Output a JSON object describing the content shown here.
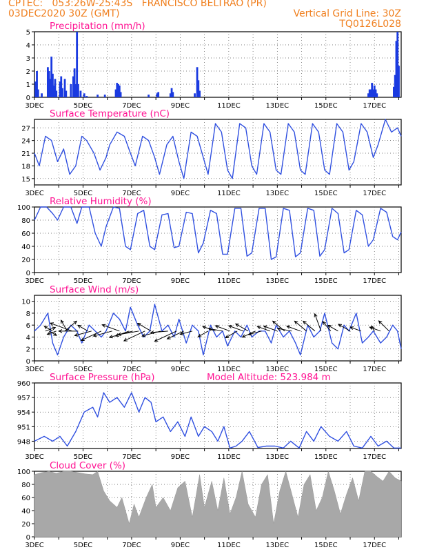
{
  "header": {
    "line1": "CPTEC:   053:26W-25:43S   FRANCISCO BELTRAO (PR)",
    "line2_left": "03DEC2020 30Z (GMT)",
    "line2_right": "Vertical Grid Line: 30Z",
    "line3_right": "TQ0126L028"
  },
  "colors": {
    "header": "#f08020",
    "title": "#ff1493",
    "line": "#3050e0",
    "bars": "#1a3ae0",
    "cloud": "#a8a8a8"
  },
  "x_axis": {
    "start_day": 3,
    "end_day": 18.1,
    "tick_labels": [
      "3DEC",
      "5DEC",
      "7DEC",
      "9DEC",
      "11DEC",
      "13DEC",
      "15DEC",
      "17DEC"
    ],
    "tick_days": [
      3,
      5,
      7,
      9,
      11,
      13,
      15,
      17
    ],
    "vertical_grid_line": "30Z"
  },
  "chart_data": [
    {
      "type": "bar",
      "title": "Precipitation (mm/h)",
      "ylim": [
        0,
        5
      ],
      "yticks": [
        "0",
        "1",
        "2",
        "3",
        "4",
        "5"
      ],
      "bars": [
        [
          3.05,
          1.2
        ],
        [
          3.1,
          2.0
        ],
        [
          3.15,
          0.6
        ],
        [
          3.3,
          0.3
        ],
        [
          3.55,
          2.3
        ],
        [
          3.6,
          2.0
        ],
        [
          3.65,
          1.4
        ],
        [
          3.7,
          3.1
        ],
        [
          3.75,
          1.8
        ],
        [
          3.8,
          0.9
        ],
        [
          3.85,
          1.4
        ],
        [
          3.9,
          0.5
        ],
        [
          4.05,
          1.2
        ],
        [
          4.1,
          1.6
        ],
        [
          4.15,
          0.7
        ],
        [
          4.25,
          1.4
        ],
        [
          4.3,
          0.5
        ],
        [
          4.5,
          1.0
        ],
        [
          4.6,
          1.6
        ],
        [
          4.65,
          2.2
        ],
        [
          4.7,
          1.0
        ],
        [
          4.75,
          5.0
        ],
        [
          4.8,
          1.0
        ],
        [
          4.9,
          0.5
        ],
        [
          5.05,
          0.3
        ],
        [
          5.15,
          0.1
        ],
        [
          5.6,
          0.2
        ],
        [
          5.9,
          0.2
        ],
        [
          6.35,
          0.6
        ],
        [
          6.4,
          1.1
        ],
        [
          6.45,
          1.0
        ],
        [
          6.5,
          0.9
        ],
        [
          6.55,
          0.4
        ],
        [
          7.7,
          0.2
        ],
        [
          8.05,
          0.3
        ],
        [
          8.1,
          0.4
        ],
        [
          8.6,
          0.3
        ],
        [
          8.65,
          0.7
        ],
        [
          8.7,
          0.4
        ],
        [
          9.6,
          0.3
        ],
        [
          9.7,
          2.3
        ],
        [
          9.75,
          1.3
        ],
        [
          9.8,
          0.5
        ],
        [
          16.75,
          0.3
        ],
        [
          16.8,
          0.6
        ],
        [
          16.85,
          0.6
        ],
        [
          16.9,
          1.1
        ],
        [
          16.95,
          0.6
        ],
        [
          17.0,
          0.9
        ],
        [
          17.05,
          0.6
        ],
        [
          17.1,
          0.3
        ],
        [
          17.8,
          0.8
        ],
        [
          17.85,
          1.7
        ],
        [
          17.9,
          4.3
        ],
        [
          17.95,
          5.0
        ],
        [
          18.0,
          2.4
        ]
      ]
    },
    {
      "type": "line",
      "title": "Surface Temperature (nC)",
      "ylim": [
        13.5,
        29
      ],
      "yticks": [
        "15",
        "18",
        "21",
        "24",
        "27"
      ],
      "ytick_values": [
        15,
        18,
        21,
        24,
        27
      ],
      "x": [
        3.0,
        3.2,
        3.45,
        3.7,
        3.95,
        4.2,
        4.45,
        4.7,
        4.95,
        5.15,
        5.45,
        5.7,
        5.95,
        6.1,
        6.4,
        6.7,
        6.95,
        7.15,
        7.45,
        7.7,
        7.95,
        8.15,
        8.45,
        8.7,
        8.95,
        9.15,
        9.45,
        9.7,
        9.95,
        10.15,
        10.45,
        10.7,
        10.95,
        11.15,
        11.45,
        11.7,
        11.95,
        12.15,
        12.45,
        12.7,
        12.95,
        13.15,
        13.45,
        13.7,
        13.95,
        14.15,
        14.45,
        14.7,
        14.95,
        15.15,
        15.45,
        15.7,
        15.95,
        16.15,
        16.45,
        16.7,
        16.95,
        17.15,
        17.45,
        17.7,
        17.95,
        18.1
      ],
      "y": [
        21,
        18,
        25,
        24,
        19,
        22,
        16,
        18,
        25,
        24,
        21,
        17,
        20,
        23,
        26,
        25,
        21,
        18,
        25,
        24,
        20,
        16,
        23,
        25,
        19,
        15,
        26,
        25,
        20,
        16,
        28,
        26,
        17,
        15,
        28,
        27,
        18,
        16,
        28,
        26,
        17,
        16,
        28,
        26,
        17,
        16,
        28,
        26,
        17,
        16,
        28,
        26,
        17,
        19,
        28,
        26,
        20,
        23,
        29,
        26,
        27,
        25
      ]
    },
    {
      "type": "line",
      "title": "Relative Humidity (%)",
      "ylim": [
        0,
        100
      ],
      "yticks": [
        "0",
        "20",
        "40",
        "60",
        "80",
        "100"
      ],
      "ytick_values": [
        0,
        20,
        40,
        60,
        80,
        100
      ],
      "x": [
        3.0,
        3.25,
        3.5,
        3.75,
        3.95,
        4.2,
        4.5,
        4.75,
        4.95,
        5.25,
        5.5,
        5.75,
        5.95,
        6.25,
        6.5,
        6.75,
        6.95,
        7.25,
        7.5,
        7.75,
        7.95,
        8.25,
        8.5,
        8.75,
        8.95,
        9.25,
        9.5,
        9.75,
        9.95,
        10.25,
        10.5,
        10.75,
        10.95,
        11.25,
        11.5,
        11.75,
        11.95,
        12.25,
        12.5,
        12.75,
        12.95,
        13.25,
        13.5,
        13.75,
        13.95,
        14.25,
        14.5,
        14.75,
        14.95,
        15.25,
        15.5,
        15.75,
        15.95,
        16.25,
        16.5,
        16.75,
        16.95,
        17.25,
        17.5,
        17.75,
        17.95,
        18.1
      ],
      "y": [
        80,
        100,
        100,
        90,
        80,
        100,
        100,
        75,
        100,
        100,
        60,
        40,
        70,
        100,
        98,
        40,
        35,
        90,
        95,
        40,
        35,
        88,
        90,
        38,
        40,
        92,
        90,
        30,
        45,
        95,
        90,
        28,
        28,
        98,
        98,
        25,
        30,
        98,
        98,
        20,
        24,
        98,
        95,
        24,
        30,
        98,
        95,
        25,
        35,
        98,
        90,
        30,
        35,
        95,
        88,
        40,
        50,
        98,
        92,
        55,
        50,
        62
      ]
    },
    {
      "type": "line",
      "title": "Surface Wind (m/s)",
      "ylim": [
        0,
        11
      ],
      "yticks": [
        "0",
        "2",
        "4",
        "6",
        "8",
        "10"
      ],
      "ytick_values": [
        0,
        2,
        4,
        6,
        8,
        10
      ],
      "x": [
        3.0,
        3.25,
        3.55,
        3.75,
        3.95,
        4.2,
        4.5,
        4.75,
        4.95,
        5.25,
        5.5,
        5.75,
        5.95,
        6.25,
        6.5,
        6.75,
        6.95,
        7.25,
        7.5,
        7.75,
        7.95,
        8.25,
        8.5,
        8.75,
        8.95,
        9.25,
        9.5,
        9.75,
        9.95,
        10.25,
        10.5,
        10.75,
        10.95,
        11.25,
        11.5,
        11.75,
        11.95,
        12.25,
        12.5,
        12.75,
        12.95,
        13.25,
        13.5,
        13.75,
        13.95,
        14.25,
        14.5,
        14.75,
        14.95,
        15.25,
        15.5,
        15.75,
        15.95,
        16.25,
        16.5,
        16.75,
        16.95,
        17.25,
        17.5,
        17.75,
        17.95,
        18.1
      ],
      "y": [
        5,
        6,
        8,
        3,
        1,
        4,
        6,
        5,
        3,
        6,
        5,
        4,
        5,
        8,
        7,
        5,
        9,
        6,
        4,
        5,
        9.5,
        5,
        6,
        4,
        7,
        3,
        6,
        5,
        1,
        6,
        4,
        5,
        2.5,
        5,
        4,
        6,
        4,
        5,
        5,
        3,
        6,
        4,
        5,
        3,
        1,
        6,
        4,
        5,
        8,
        3,
        2,
        6,
        5,
        8,
        3,
        4,
        5,
        3,
        4,
        6,
        5,
        2
      ]
    },
    {
      "type": "line",
      "title": "Surface Pressure (hPa)",
      "annotation": "Model Altitude: 523.984  m",
      "ylim": [
        946.5,
        960
      ],
      "yticks": [
        "948",
        "951",
        "954",
        "957",
        "960"
      ],
      "ytick_values": [
        948,
        951,
        954,
        957,
        960
      ],
      "x": [
        3.0,
        3.4,
        3.75,
        4.05,
        4.35,
        4.7,
        5.05,
        5.4,
        5.6,
        5.85,
        6.1,
        6.4,
        6.7,
        7.0,
        7.3,
        7.55,
        7.8,
        8.0,
        8.3,
        8.6,
        8.9,
        9.2,
        9.45,
        9.75,
        10.0,
        10.3,
        10.55,
        10.8,
        11.05,
        11.3,
        11.55,
        11.85,
        12.2,
        12.55,
        12.9,
        13.25,
        13.55,
        13.9,
        14.2,
        14.5,
        14.8,
        15.15,
        15.5,
        15.85,
        16.15,
        16.5,
        16.85,
        17.15,
        17.5,
        17.8,
        18.1
      ],
      "y": [
        948,
        949,
        948,
        949,
        947,
        950,
        954,
        955,
        953,
        958,
        956,
        957,
        955,
        958,
        954,
        957,
        956,
        952,
        953,
        950,
        952,
        949,
        953,
        949,
        951,
        950,
        948,
        951,
        946.6,
        947,
        948,
        950,
        946.7,
        947,
        947,
        946.6,
        948,
        946.6,
        950,
        948,
        951,
        949,
        948,
        950,
        947,
        946.6,
        949,
        947,
        948,
        946.6,
        946.6
      ]
    },
    {
      "type": "area",
      "title": "Cloud Cover (%)",
      "ylim": [
        0,
        100
      ],
      "yticks": [
        "0",
        "20",
        "40",
        "60",
        "80",
        "100"
      ],
      "ytick_values": [
        0,
        20,
        40,
        60,
        80,
        100
      ],
      "x": [
        3.0,
        3.3,
        3.6,
        3.9,
        4.2,
        4.5,
        4.8,
        5.1,
        5.4,
        5.6,
        5.85,
        6.1,
        6.4,
        6.6,
        6.9,
        7.1,
        7.3,
        7.6,
        7.85,
        8.0,
        8.3,
        8.6,
        8.9,
        9.2,
        9.5,
        9.8,
        10.0,
        10.3,
        10.55,
        10.8,
        11.05,
        11.3,
        11.55,
        11.8,
        12.1,
        12.35,
        12.6,
        12.85,
        13.1,
        13.35,
        13.6,
        13.85,
        14.1,
        14.35,
        14.6,
        14.85,
        15.1,
        15.35,
        15.6,
        15.85,
        16.1,
        16.35,
        16.6,
        16.85,
        17.1,
        17.35,
        17.6,
        17.85,
        18.1
      ],
      "y": [
        95,
        98,
        100,
        97,
        100,
        100,
        98,
        96,
        95,
        100,
        70,
        55,
        45,
        60,
        20,
        50,
        30,
        60,
        80,
        45,
        60,
        40,
        75,
        85,
        30,
        95,
        45,
        85,
        40,
        90,
        35,
        60,
        100,
        50,
        30,
        80,
        95,
        20,
        70,
        100,
        65,
        30,
        80,
        95,
        40,
        60,
        100,
        70,
        35,
        65,
        90,
        55,
        100,
        100,
        92,
        85,
        100,
        90,
        85
      ]
    }
  ],
  "wind_vectors": [
    [
      3.45,
      -20,
      1.1
    ],
    [
      3.6,
      30,
      0.9
    ],
    [
      3.75,
      -150,
      1.0
    ],
    [
      3.9,
      160,
      1.0
    ],
    [
      4.25,
      -40,
      1.6
    ],
    [
      4.35,
      -120,
      1.3
    ],
    [
      4.55,
      -160,
      2.4
    ],
    [
      4.8,
      180,
      2.0
    ],
    [
      5.2,
      -150,
      1.2
    ],
    [
      5.35,
      165,
      1.8
    ],
    [
      5.75,
      155,
      2.3
    ],
    [
      6.2,
      165,
      2.0
    ],
    [
      6.5,
      -160,
      1.9
    ],
    [
      6.9,
      160,
      1.5
    ],
    [
      7.05,
      165,
      2.5
    ],
    [
      7.3,
      170,
      2.2
    ],
    [
      7.55,
      155,
      2.4
    ],
    [
      7.8,
      -150,
      1.6
    ],
    [
      8.2,
      165,
      2.0
    ],
    [
      8.5,
      175,
      1.8
    ],
    [
      8.85,
      155,
      2.5
    ],
    [
      9.15,
      155,
      1.9
    ],
    [
      9.5,
      165,
      1.3
    ],
    [
      10.15,
      150,
      1.2
    ],
    [
      10.45,
      -160,
      1.4
    ],
    [
      10.75,
      -170,
      1.5
    ],
    [
      11.05,
      -160,
      1.6
    ],
    [
      11.35,
      150,
      1.4
    ],
    [
      11.6,
      -160,
      1.6
    ],
    [
      11.8,
      -150,
      1.5
    ],
    [
      12.1,
      155,
      1.5
    ],
    [
      12.35,
      165,
      1.4
    ],
    [
      12.7,
      -160,
      1.4
    ],
    [
      13.0,
      -160,
      1.5
    ],
    [
      13.3,
      -140,
      1.6
    ],
    [
      13.6,
      -170,
      1.5
    ],
    [
      13.95,
      -160,
      1.5
    ],
    [
      14.2,
      -140,
      1.6
    ],
    [
      14.55,
      -140,
      1.6
    ],
    [
      14.8,
      -110,
      1.9
    ],
    [
      15.2,
      -130,
      1.3
    ],
    [
      15.5,
      -150,
      1.2
    ],
    [
      16.0,
      -150,
      1.4
    ],
    [
      16.45,
      -160,
      1.2
    ],
    [
      17.0,
      -120,
      0.6
    ],
    [
      17.25,
      -160,
      1.2
    ],
    [
      17.6,
      -135,
      1.5
    ]
  ]
}
